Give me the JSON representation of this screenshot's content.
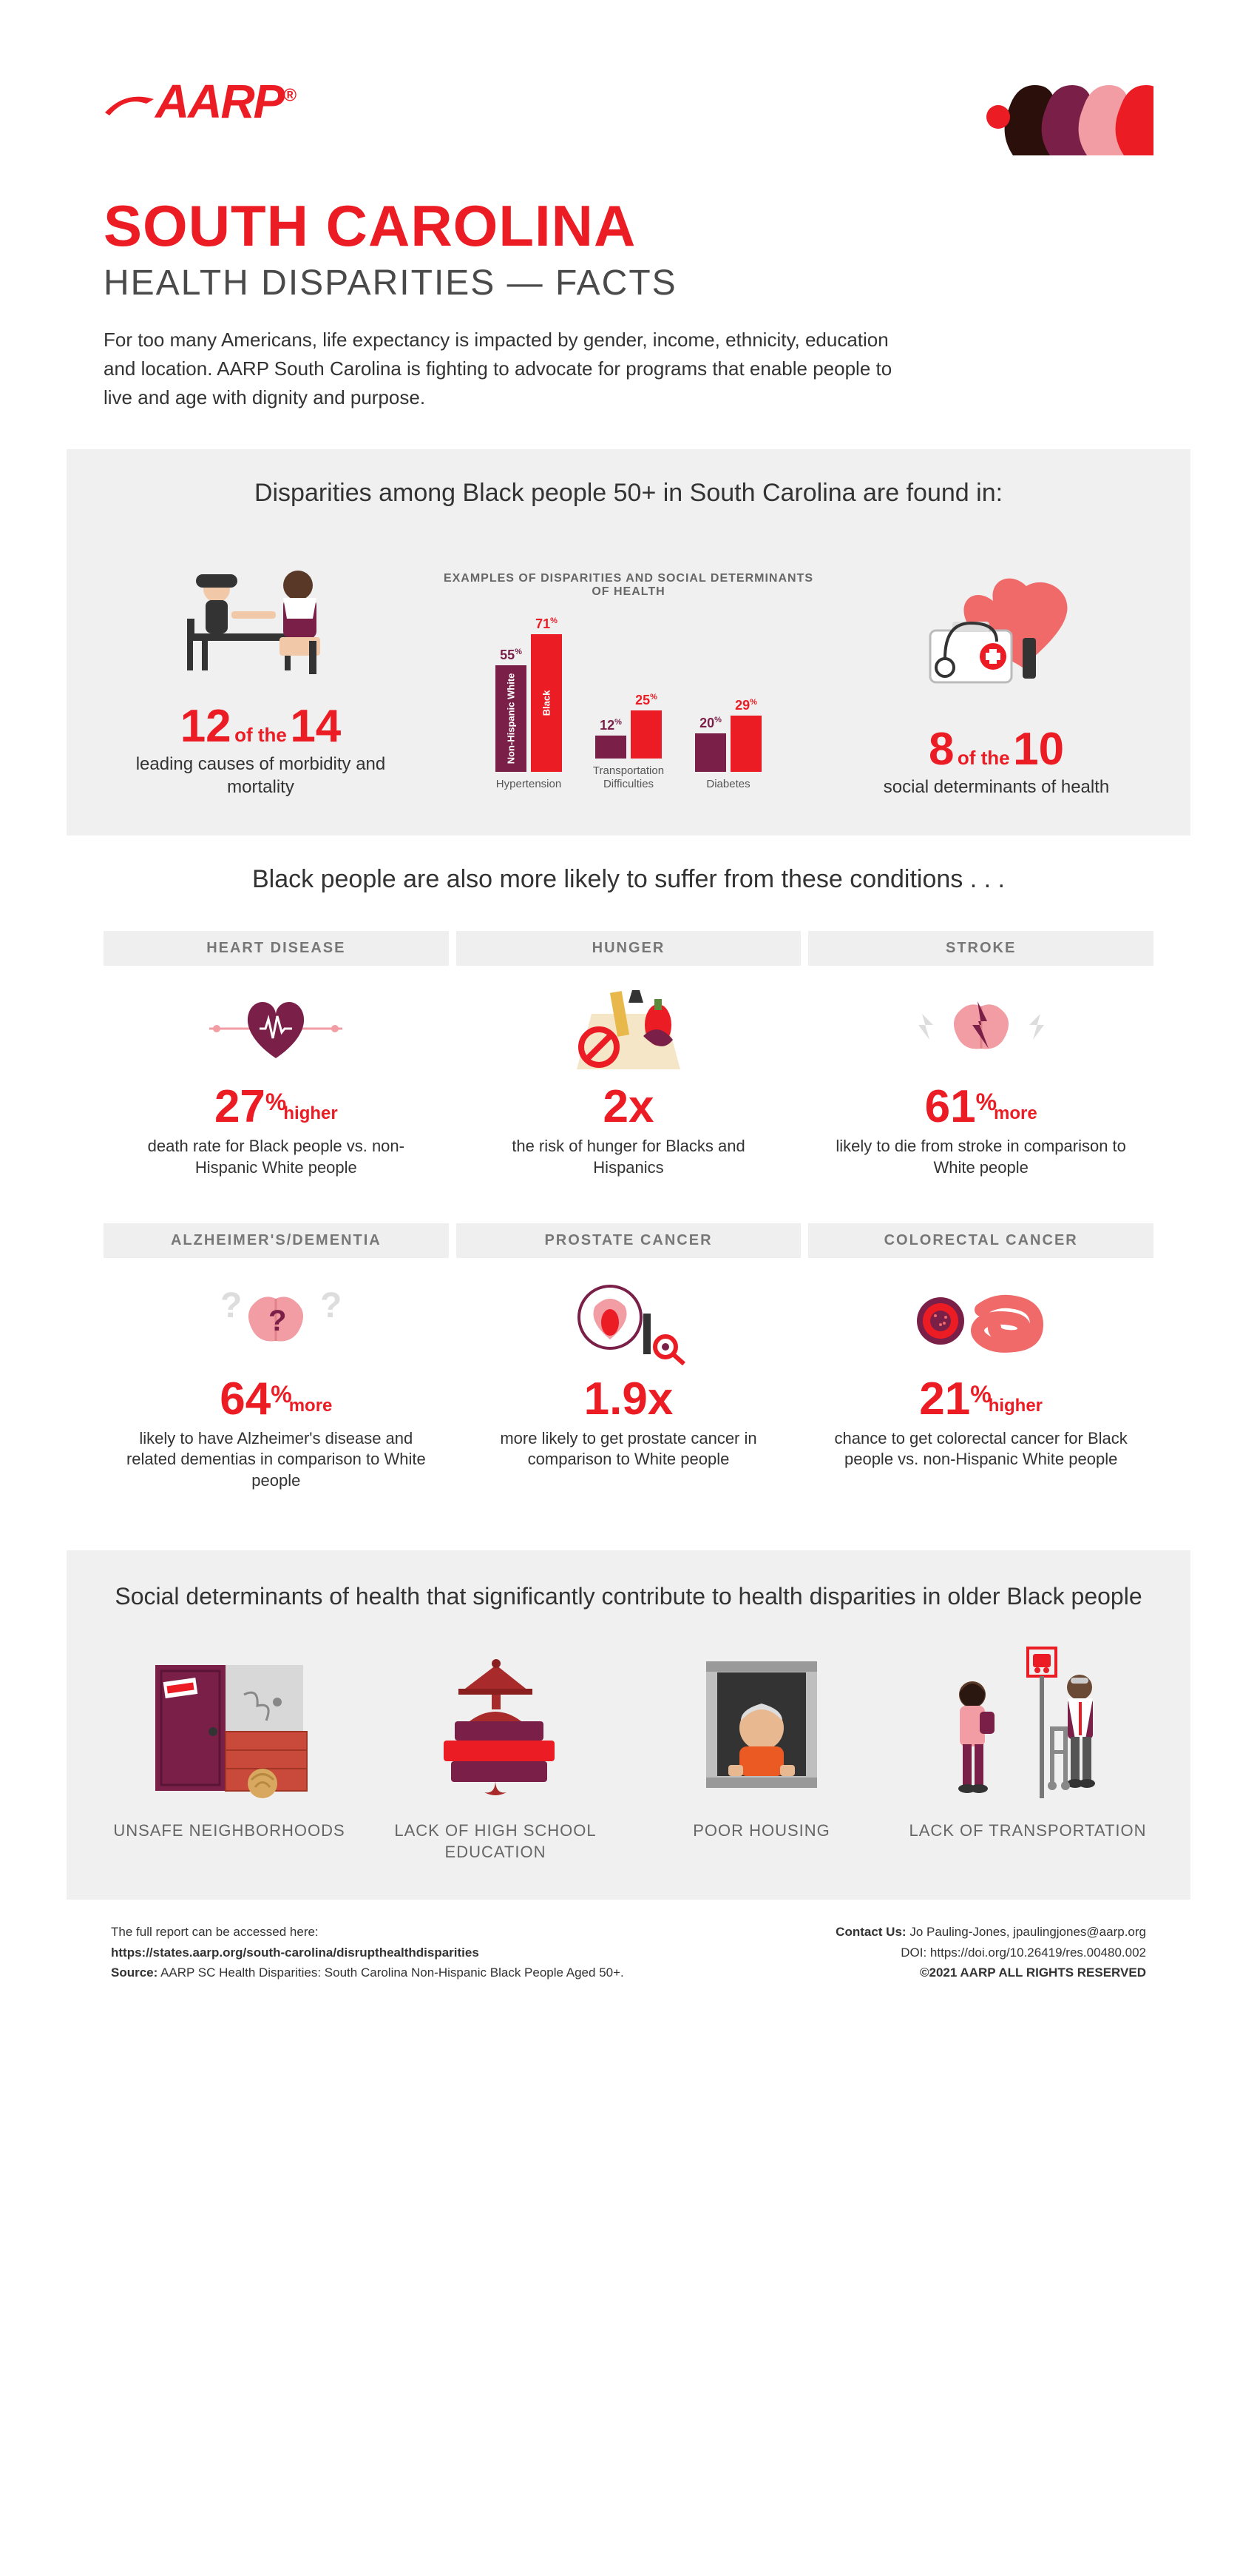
{
  "colors": {
    "red": "#ec1c24",
    "maroon": "#7a1f47",
    "purple_bar": "#7a1f47",
    "red_bar": "#ec1c24",
    "gray_band": "#f0f0f0",
    "text": "#333333",
    "gray_text": "#666666",
    "pink": "#f29ca4",
    "dark_gray": "#4a4a4a",
    "dark1": "#2b0f0a",
    "dark2": "#7a1f47"
  },
  "logo_text": "AARP",
  "title_main": "SOUTH CAROLINA",
  "title_sub": "HEALTH DISPARITIES — FACTS",
  "intro": "For too many Americans, life expectancy is impacted by gender, income, ethnicity, education and location.  AARP South Carolina is fighting to advocate for programs that enable people to live and age with dignity and purpose.",
  "section1": {
    "title": "Disparities among Black people 50+ in South Carolina are found in:",
    "left": {
      "big1": "12",
      "mid1": "of the",
      "big2": "14",
      "caption": "leading causes of morbidity and mortality"
    },
    "chart": {
      "heading": "EXAMPLES OF DISPARITIES AND SOCIAL DETERMINANTS OF HEALTH",
      "max": 80,
      "groups": [
        {
          "cat": "Hypertension",
          "white": 55,
          "black": 71,
          "labels": [
            "Non-Hispanic White",
            "Black"
          ]
        },
        {
          "cat": "Transportation Difficulties",
          "white": 12,
          "black": 25
        },
        {
          "cat": "Diabetes",
          "white": 20,
          "black": 29
        }
      ],
      "series_colors": {
        "white": "#7a1f47",
        "black": "#ec1c24"
      }
    },
    "right": {
      "big1": "8",
      "mid1": "of the",
      "big2": "10",
      "caption": "social determinants of health"
    }
  },
  "conditions": {
    "title": "Black people are also more likely to suffer from these conditions . . .",
    "items": [
      {
        "header": "HEART DISEASE",
        "stat": "27",
        "pct": "%",
        "suffix": "higher",
        "desc": "death rate for Black people vs. non-Hispanic White people",
        "icon": "heart"
      },
      {
        "header": "HUNGER",
        "stat": "2x",
        "pct": "",
        "suffix": "",
        "desc": "the risk of hunger for Blacks and Hispanics",
        "icon": "hunger"
      },
      {
        "header": "STROKE",
        "stat": "61",
        "pct": "%",
        "suffix": "more",
        "desc": "likely to die from stroke in comparison to White people",
        "icon": "stroke"
      },
      {
        "header": "ALZHEIMER'S/DEMENTIA",
        "stat": "64",
        "pct": "%",
        "suffix": "more",
        "desc": "likely to have Alzheimer's disease and related dementias in comparison to White people",
        "icon": "dementia"
      },
      {
        "header": "PROSTATE CANCER",
        "stat": "1.9x",
        "pct": "",
        "suffix": "",
        "desc": "more likely to get prostate cancer in comparison to White people",
        "icon": "prostate"
      },
      {
        "header": "COLORECTAL CANCER",
        "stat": "21",
        "pct": "%",
        "suffix": "higher",
        "desc": "chance to get colorectal cancer for Black people vs. non-Hispanic White people",
        "icon": "colon"
      }
    ]
  },
  "determinants": {
    "title": "Social determinants of health that significantly contribute to health disparities in older Black people",
    "items": [
      {
        "label": "UNSAFE NEIGHBORHOODS",
        "icon": "door"
      },
      {
        "label": "LACK OF HIGH SCHOOL EDUCATION",
        "icon": "books"
      },
      {
        "label": "POOR HOUSING",
        "icon": "window"
      },
      {
        "label": "LACK OF TRANSPORTATION",
        "icon": "bus-stop"
      }
    ]
  },
  "footer": {
    "left_line1": "The full report can be accessed here:",
    "left_url": "https://states.aarp.org/south-carolina/disrupthealthdisparities",
    "left_source_label": "Source:",
    "left_source": "AARP SC Health Disparities: South Carolina Non-Hispanic Black People Aged 50+.",
    "contact_label": "Contact Us:",
    "contact": "Jo Pauling-Jones, jpaulingjones@aarp.org",
    "doi": "DOI: https://doi.org/10.26419/res.00480.002",
    "copyright": "©2021 AARP ALL RIGHTS RESERVED"
  }
}
